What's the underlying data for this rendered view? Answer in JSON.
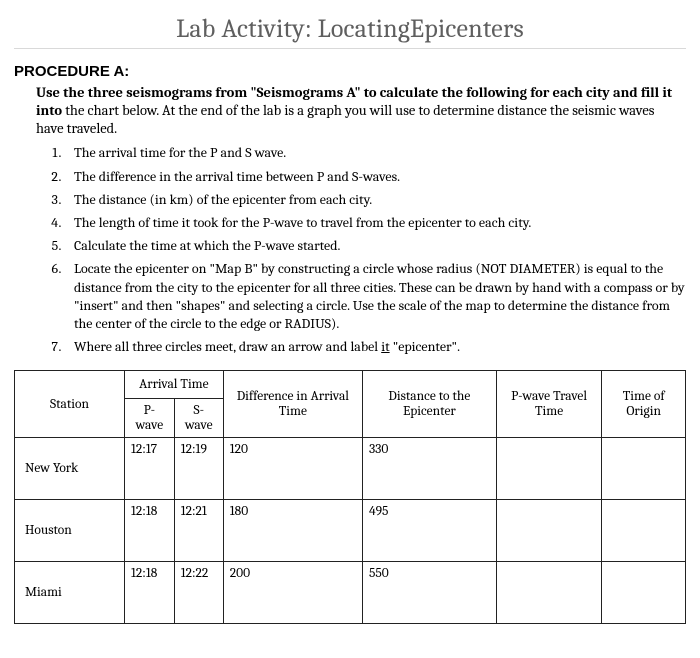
{
  "title": "Lab Activity: LocatingEpicenters",
  "procedure_label": "PROCEDURE A:",
  "intro_bold": "Use the three seismograms from \"Seismograms A\" to calculate the following for each city and fill it into",
  "intro_rest": "the chart below.  At the end of the lab is a graph you will use to determine distance the seismic waves have traveled.",
  "steps": {
    "s1": "The arrival time for the P and S  wave.",
    "s2": "The difference in the arrival time between P and  S-waves.",
    "s3": "The distance (in km) of the epicenter from each  city.",
    "s4": "The length of time it took for the P-wave to travel from the epicenter to each city.",
    "s5": "Calculate the time at which the P-wave started.",
    "s6": "Locate the epicenter on \"Map B\" by constructing a circle whose radius (NOT DIAMETER) is equal to the distance from the city to the epicenter for all three cities.  These can be drawn by hand with a compass or by \"insert\" and then \"shapes\" and selecting a circle.  Use the scale of the map to determine the distance from the center of the circle to the edge or RADIUS).",
    "s7_a": "Where all three circles meet, draw an arrow and label ",
    "s7_u": "it",
    "s7_b": " \"epicenter\"."
  },
  "table": {
    "headers": {
      "station": "Station",
      "arrival": "Arrival Time",
      "pwave": "P-wave",
      "swave": "S-wave",
      "diff": "Difference in Arrival Time",
      "dist": "Distance to the Epicenter",
      "ptravel": "P-wave Travel Time",
      "origin": "Time of Origin"
    },
    "rows": [
      {
        "station": "New York",
        "p": "12:17",
        "s": "12:19",
        "diff": "120",
        "dist": "330",
        "travel": "",
        "origin": ""
      },
      {
        "station": "Houston",
        "p": "12:18",
        "s": "12:21",
        "diff": "180",
        "dist": "495",
        "travel": "",
        "origin": ""
      },
      {
        "station": "Miami",
        "p": "12:18",
        "s": "12:22",
        "diff": "200",
        "dist": "550",
        "travel": "",
        "origin": ""
      }
    ]
  }
}
